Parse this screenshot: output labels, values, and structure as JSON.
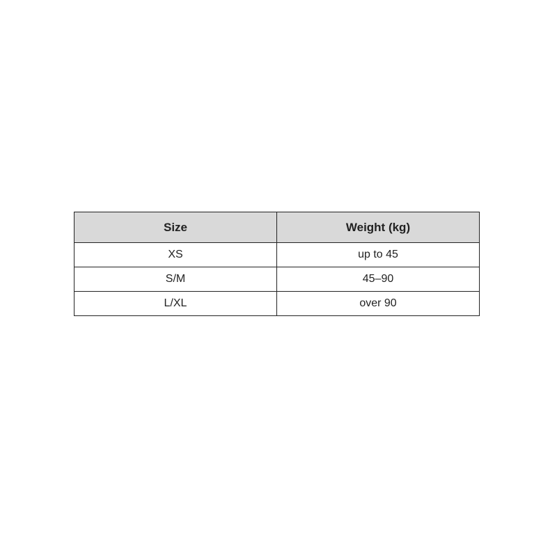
{
  "table": {
    "headers": [
      "Size",
      "Weight (kg)"
    ],
    "rows": [
      [
        "XS",
        "up to 45"
      ],
      [
        "S/M",
        "45–90"
      ],
      [
        "L/XL",
        "over 90"
      ]
    ]
  }
}
